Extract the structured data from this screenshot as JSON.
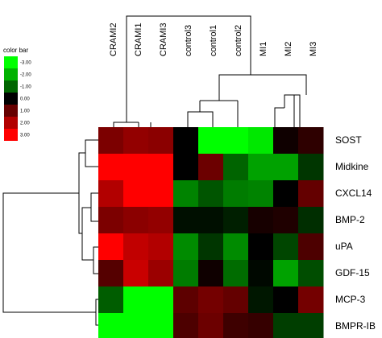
{
  "chart_data": {
    "type": "heatmap",
    "columns": [
      "CRAMI2",
      "CRAMI1",
      "CRAMI3",
      "control3",
      "control1",
      "control2",
      "MI1",
      "MI2",
      "MI3"
    ],
    "rows": [
      "SOST",
      "Midkine",
      "CXCL14",
      "BMP-2",
      "uPA",
      "GDF-15",
      "MCP-3",
      "BMPR-IB"
    ],
    "values": [
      [
        1.6,
        1.9,
        1.8,
        0.0,
        -3.5,
        -3.5,
        -3.0,
        0.2,
        0.6
      ],
      [
        3.3,
        3.3,
        3.3,
        0.0,
        1.4,
        -1.3,
        -2.1,
        -2.1,
        -0.7
      ],
      [
        2.3,
        3.3,
        3.3,
        -1.7,
        -1.1,
        -1.6,
        -1.7,
        0.0,
        1.3
      ],
      [
        1.6,
        1.8,
        1.9,
        -0.2,
        -0.2,
        -0.4,
        0.3,
        0.4,
        -0.6
      ],
      [
        3.4,
        2.5,
        2.3,
        -1.8,
        -0.7,
        -1.8,
        0.0,
        -0.9,
        1.0
      ],
      [
        1.1,
        2.6,
        2.0,
        -1.6,
        0.2,
        -1.4,
        -0.1,
        -2.1,
        -1.0
      ],
      [
        -1.2,
        -3.5,
        -3.5,
        1.2,
        1.5,
        1.3,
        -0.3,
        0.0,
        1.5
      ],
      [
        -3.3,
        -3.5,
        -3.5,
        1.0,
        1.4,
        0.8,
        0.7,
        -0.8,
        -0.8
      ]
    ],
    "color_bar": {
      "title": "color bar",
      "ticks": [
        "-3.00",
        "-2.00",
        "-1.00",
        "0.00",
        "1.00",
        "2.00",
        "3.00"
      ],
      "colors": [
        "#00ff00",
        "#00b200",
        "#006600",
        "#000000",
        "#660000",
        "#b20000",
        "#ff0000"
      ]
    }
  }
}
